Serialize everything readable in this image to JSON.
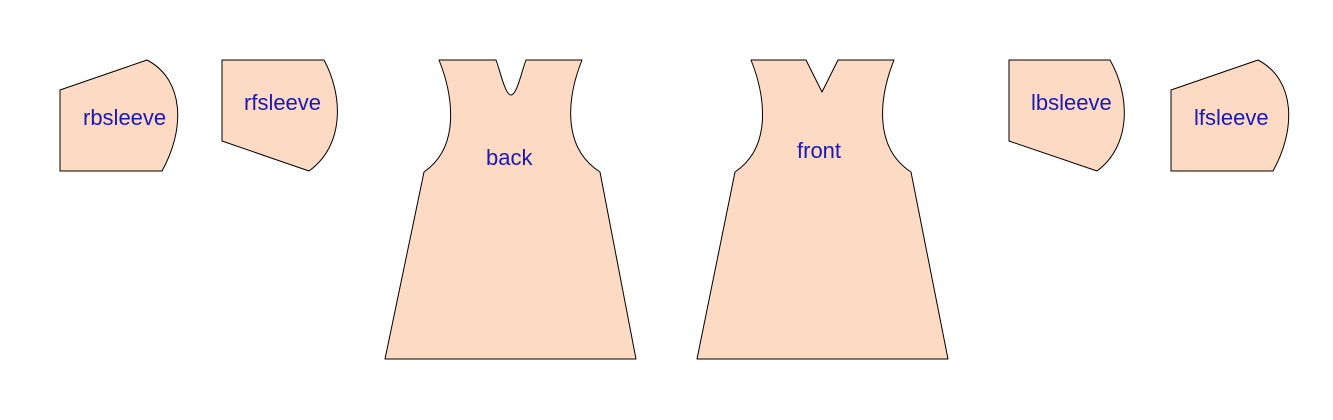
{
  "colors": {
    "background": "#ffffff",
    "piece_fill": "#fddac3",
    "piece_outline": "#000000",
    "label_color": "#1a1ab0"
  },
  "pieces": {
    "rbsleeve": {
      "label": "rbsleeve"
    },
    "rfsleeve": {
      "label": "rfsleeve"
    },
    "back": {
      "label": "back"
    },
    "front": {
      "label": "front"
    },
    "lbsleeve": {
      "label": "lbsleeve"
    },
    "lfsleeve": {
      "label": "lfsleeve"
    }
  }
}
